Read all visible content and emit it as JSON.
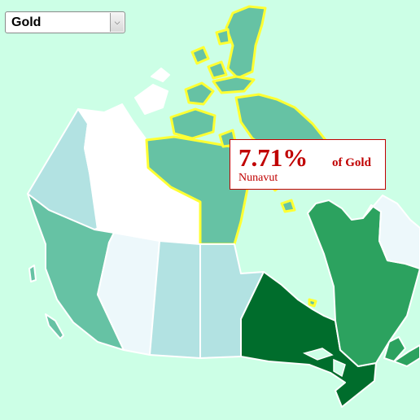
{
  "selector": {
    "selected": "Gold"
  },
  "tooltip": {
    "value": "7.71%",
    "unit": "of Gold",
    "region": "Nunavut"
  },
  "colors": {
    "background": "#ccffe6",
    "nunavut": "#66c2a4",
    "ontario": "#006d2c",
    "quebec": "#2ca25f",
    "newfoundland_labrador": "#edf8fb",
    "british_columbia": "#66c2a4",
    "yukon": "#b2e2e2",
    "northwest_territories": "#ffffff",
    "alberta": "#edf8fb",
    "saskatchewan": "#b2e2e2",
    "manitoba": "#b2e2e2",
    "maritimes": "#2ca25f",
    "selection_outline": "#ffff33",
    "tooltip_text": "#c00000"
  }
}
